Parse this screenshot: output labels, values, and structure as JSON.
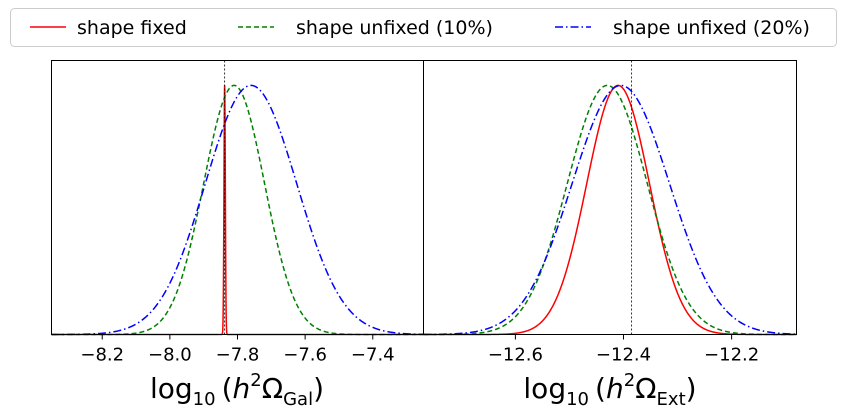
{
  "legend": {
    "position": "top-center",
    "entries": [
      {
        "label": "shape fixed",
        "color": "#ff0000",
        "dash": "solid"
      },
      {
        "label": "shape unfixed (10%)",
        "color": "#008000",
        "dash": "dashed"
      },
      {
        "label": "shape unfixed (20%)",
        "color": "#0000ff",
        "dash": "dashdot"
      }
    ]
  },
  "chart_data": [
    {
      "type": "line",
      "xlabel": {
        "prefix": "log",
        "prefix_sub": "10",
        "open": "(",
        "h": "h",
        "h_sup": "2",
        "omega": "Ω",
        "omega_sub": "Gal",
        "close": ")"
      },
      "ylabel": "",
      "xlim": [
        -8.35,
        -7.25
      ],
      "ylim": [
        0,
        1.1
      ],
      "xticks": [
        -8.2,
        -8.0,
        -7.8,
        -7.6,
        -7.4
      ],
      "xtick_labels": [
        "−8.2",
        "−8.0",
        "−7.8",
        "−7.6",
        "−7.4"
      ],
      "true_value": -7.838,
      "series": [
        {
          "name": "shape fixed",
          "color": "#ff0000",
          "dash": "solid",
          "mean": -7.838,
          "sigma": 0.002
        },
        {
          "name": "shape unfixed (10%)",
          "color": "#008000",
          "dash": "dashed",
          "mean": -7.81,
          "sigma": 0.09
        },
        {
          "name": "shape unfixed (20%)",
          "color": "#0000ff",
          "dash": "dashdot",
          "mean": -7.76,
          "sigma": 0.135
        }
      ]
    },
    {
      "type": "line",
      "xlabel": {
        "prefix": "log",
        "prefix_sub": "10",
        "open": "(",
        "h": "h",
        "h_sup": "2",
        "omega": "Ω",
        "omega_sub": "Ext",
        "close": ")"
      },
      "ylabel": "",
      "xlim": [
        -12.77,
        -12.08
      ],
      "ylim": [
        0,
        1.1
      ],
      "xticks": [
        -12.6,
        -12.4,
        -12.2
      ],
      "xtick_labels": [
        "−12.6",
        "−12.4",
        "−12.2"
      ],
      "true_value": -12.385,
      "series": [
        {
          "name": "shape fixed",
          "color": "#ff0000",
          "dash": "solid",
          "mean": -12.41,
          "sigma": 0.058
        },
        {
          "name": "shape unfixed (10%)",
          "color": "#008000",
          "dash": "dashed",
          "mean": -12.43,
          "sigma": 0.074
        },
        {
          "name": "shape unfixed (20%)",
          "color": "#0000ff",
          "dash": "dashdot",
          "mean": -12.405,
          "sigma": 0.09
        }
      ]
    }
  ]
}
